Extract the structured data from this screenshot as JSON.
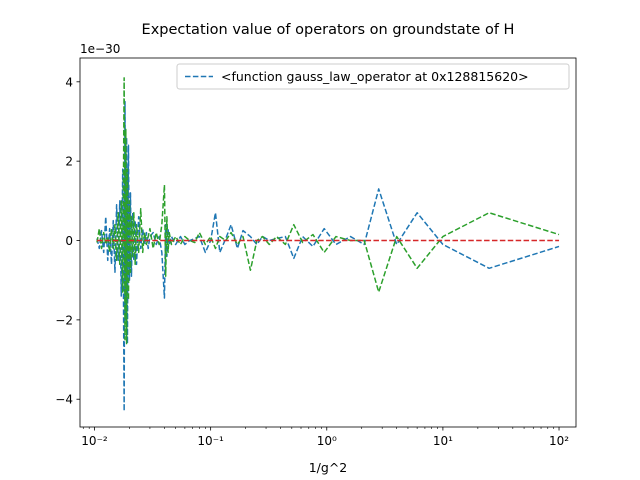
{
  "chart_data": {
    "type": "line",
    "title": "Expectation value of operators on groundstate of H",
    "xlabel": "1/g^2",
    "ylabel": "",
    "xscale": "log",
    "xlim": [
      0.0075,
      140
    ],
    "ylim": [
      -4.7,
      4.6
    ],
    "y_offset_label": "1e−30",
    "x_ticks": [
      0.01,
      0.1,
      1,
      10,
      100
    ],
    "x_tick_labels": [
      "10⁻²",
      "10⁻¹",
      "10⁰",
      "10¹",
      "10²"
    ],
    "y_ticks": [
      -4,
      -2,
      0,
      2,
      4
    ],
    "y_tick_labels": [
      "−4",
      "−2",
      "0",
      "2",
      "4"
    ],
    "legend": {
      "position": "top-right",
      "entries": [
        "<function gauss_law_operator at 0x128815620>"
      ]
    },
    "series": [
      {
        "name": "<function gauss_law_operator at 0x128815620>",
        "color": "#1f77b4",
        "dashed": true,
        "x": [
          0.0105,
          0.011,
          0.0115,
          0.012,
          0.0125,
          0.013,
          0.0135,
          0.014,
          0.0145,
          0.015,
          0.0155,
          0.016,
          0.0165,
          0.017,
          0.0175,
          0.018,
          0.0183,
          0.0186,
          0.0189,
          0.0192,
          0.0196,
          0.02,
          0.0204,
          0.0208,
          0.0213,
          0.0218,
          0.0224,
          0.023,
          0.024,
          0.025,
          0.026,
          0.027,
          0.028,
          0.029,
          0.03,
          0.032,
          0.034,
          0.036,
          0.038,
          0.04,
          0.041,
          0.042,
          0.043,
          0.044,
          0.046,
          0.05,
          0.055,
          0.06,
          0.066,
          0.073,
          0.08,
          0.09,
          0.1,
          0.11,
          0.12,
          0.135,
          0.15,
          0.17,
          0.19,
          0.22,
          0.25,
          0.28,
          0.32,
          0.37,
          0.44,
          0.52,
          0.62,
          0.76,
          0.95,
          1.2,
          1.6,
          2.1,
          2.8,
          4.0,
          6.0,
          10.0,
          25.0,
          100.0
        ],
        "values": [
          0.05,
          -0.2,
          0.25,
          -0.3,
          0.6,
          -0.5,
          0.3,
          -0.6,
          0.5,
          -0.8,
          0.9,
          -0.5,
          1.0,
          -1.4,
          1.8,
          -4.3,
          3.5,
          -2.0,
          2.6,
          -2.6,
          2.4,
          -1.0,
          1.2,
          -0.9,
          0.7,
          -0.5,
          0.5,
          -0.6,
          0.6,
          -0.2,
          0.3,
          -0.1,
          0.2,
          -0.2,
          0.1,
          0.2,
          -0.1,
          0.1,
          -0.3,
          -1.45,
          0.4,
          -0.4,
          0.3,
          -0.1,
          0.1,
          -0.1,
          0.1,
          -0.1,
          0.0,
          0.05,
          0.1,
          -0.3,
          0.0,
          0.7,
          -0.3,
          0.05,
          0.4,
          -0.2,
          0.25,
          0.1,
          -0.1,
          0.1,
          0.0,
          0.05,
          0.1,
          -0.45,
          0.1,
          -0.15,
          0.3,
          -0.1,
          0.1,
          -0.1,
          1.3,
          -0.1,
          0.7,
          -0.1,
          -0.7,
          -0.15
        ]
      },
      {
        "name": "",
        "color": "#2ca02c",
        "dashed": true,
        "x": [
          0.0105,
          0.011,
          0.0115,
          0.012,
          0.0125,
          0.013,
          0.0135,
          0.014,
          0.0145,
          0.015,
          0.0155,
          0.016,
          0.0165,
          0.017,
          0.0175,
          0.018,
          0.0183,
          0.0186,
          0.0189,
          0.0192,
          0.0196,
          0.02,
          0.0204,
          0.0208,
          0.0213,
          0.0218,
          0.0224,
          0.023,
          0.024,
          0.025,
          0.026,
          0.027,
          0.028,
          0.029,
          0.03,
          0.032,
          0.034,
          0.036,
          0.038,
          0.04,
          0.041,
          0.042,
          0.043,
          0.044,
          0.046,
          0.05,
          0.055,
          0.06,
          0.066,
          0.073,
          0.08,
          0.09,
          0.1,
          0.11,
          0.12,
          0.135,
          0.15,
          0.17,
          0.19,
          0.22,
          0.25,
          0.28,
          0.32,
          0.37,
          0.44,
          0.52,
          0.62,
          0.76,
          0.95,
          1.2,
          1.6,
          2.1,
          2.8,
          4.0,
          6.0,
          10.0,
          25.0,
          100.0
        ],
        "values": [
          -0.05,
          0.3,
          -0.2,
          0.2,
          -0.1,
          0.1,
          -0.3,
          0.3,
          -0.2,
          0.4,
          -0.5,
          0.7,
          -0.6,
          1.0,
          -1.3,
          4.1,
          -2.5,
          2.8,
          -2.6,
          1.8,
          -1.5,
          1.0,
          -0.8,
          0.6,
          -0.4,
          0.7,
          -0.6,
          0.4,
          -0.3,
          0.8,
          -0.3,
          0.2,
          -0.1,
          0.1,
          0.3,
          -0.2,
          0.2,
          -0.1,
          0.4,
          1.4,
          -0.9,
          0.6,
          -0.3,
          0.2,
          -0.1,
          0.1,
          -0.1,
          0.1,
          0.0,
          -0.05,
          0.2,
          -0.1,
          0.1,
          -0.2,
          0.1,
          0.0,
          0.2,
          -0.1,
          0.1,
          -0.75,
          0.0,
          0.1,
          -0.1,
          0.1,
          -0.1,
          0.4,
          -0.05,
          0.15,
          -0.3,
          0.1,
          0.0,
          0.0,
          -1.3,
          0.1,
          -0.7,
          0.1,
          0.7,
          0.15
        ]
      },
      {
        "name": "",
        "color": "#d62728",
        "dashed": true,
        "x": [
          0.0105,
          100.0
        ],
        "values": [
          0.0,
          0.0
        ]
      }
    ]
  }
}
